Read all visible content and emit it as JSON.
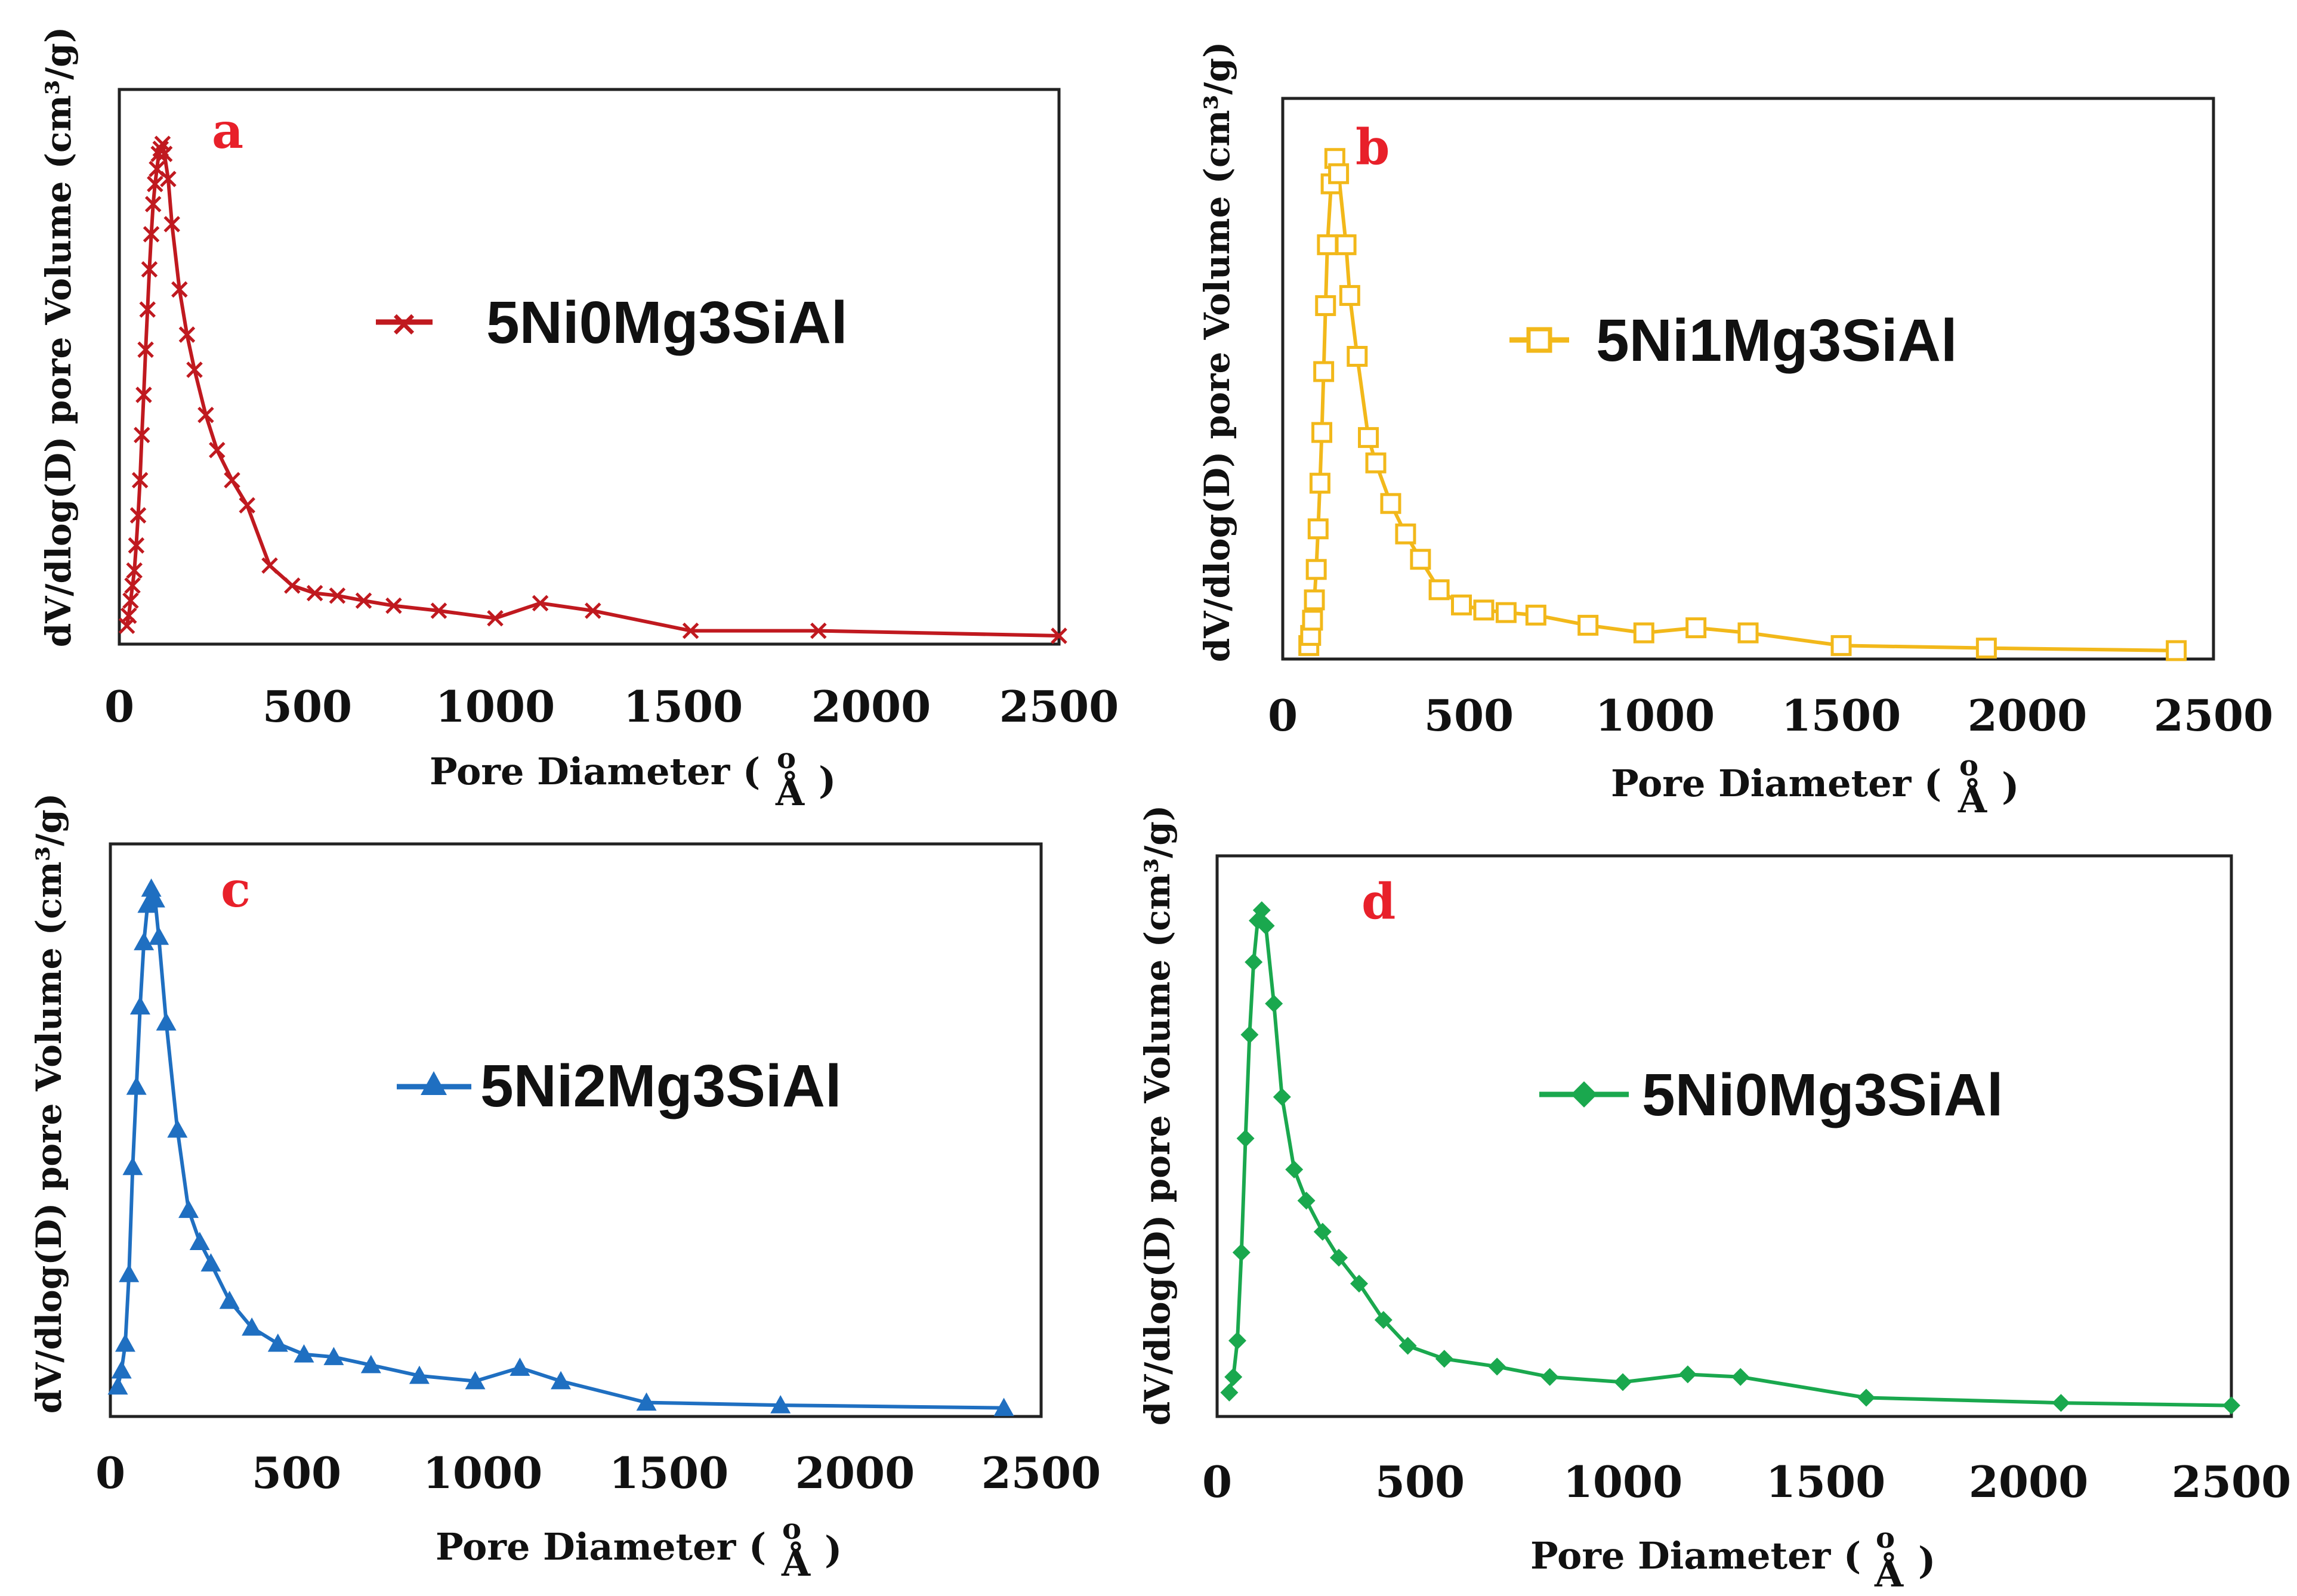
{
  "chart_data": [
    {
      "type": "line",
      "panel_label": "a",
      "legend": "5Ni0Mg3SiAl",
      "color": "#c0191f",
      "marker": "x",
      "xlabel_prefix": "Pore Diameter (",
      "xlabel_unit": "Å",
      "xlabel_suffix": ")",
      "ylabel": "dV/dlog(D) pore Volume (cm³/g)",
      "xlim": [
        0,
        2500
      ],
      "ylim": [
        0,
        1.0
      ],
      "x_ticks": [
        "0",
        "500",
        "1000",
        "1500",
        "2000",
        "2500"
      ],
      "x": [
        20,
        25,
        30,
        35,
        40,
        45,
        50,
        55,
        60,
        65,
        70,
        75,
        80,
        85,
        90,
        95,
        100,
        105,
        110,
        115,
        120,
        130,
        140,
        160,
        180,
        200,
        230,
        260,
        300,
        340,
        400,
        460,
        520,
        580,
        650,
        730,
        850,
        1000,
        1120,
        1260,
        1520,
        1860,
        2500
      ],
      "y": [
        0.02,
        0.04,
        0.07,
        0.1,
        0.13,
        0.18,
        0.24,
        0.31,
        0.4,
        0.48,
        0.57,
        0.65,
        0.73,
        0.8,
        0.86,
        0.9,
        0.93,
        0.96,
        0.97,
        0.98,
        0.96,
        0.91,
        0.82,
        0.69,
        0.6,
        0.53,
        0.44,
        0.37,
        0.31,
        0.26,
        0.14,
        0.1,
        0.085,
        0.08,
        0.07,
        0.06,
        0.05,
        0.035,
        0.065,
        0.05,
        0.01,
        0.01,
        0.0
      ]
    },
    {
      "type": "line",
      "panel_label": "b",
      "legend": "5Ni1Mg3SiAl",
      "color": "#f2b81a",
      "marker": "square",
      "xlabel_prefix": "Pore Diameter (",
      "xlabel_unit": "Å",
      "xlabel_suffix": ")",
      "ylabel": "dV/dlog(D) pore Volume (cm³/g)",
      "xlim": [
        0,
        2500
      ],
      "ylim": [
        0,
        1.0
      ],
      "x_ticks": [
        "0",
        "500",
        "1000",
        "1500",
        "2000",
        "2500"
      ],
      "x": [
        70,
        75,
        80,
        85,
        90,
        95,
        100,
        105,
        110,
        115,
        120,
        130,
        140,
        150,
        170,
        180,
        200,
        230,
        250,
        290,
        330,
        370,
        420,
        480,
        540,
        600,
        680,
        820,
        970,
        1110,
        1250,
        1500,
        1890,
        2400
      ],
      "y": [
        0.01,
        0.03,
        0.06,
        0.1,
        0.16,
        0.24,
        0.33,
        0.43,
        0.55,
        0.68,
        0.8,
        0.92,
        0.97,
        0.94,
        0.8,
        0.7,
        0.58,
        0.42,
        0.37,
        0.29,
        0.23,
        0.18,
        0.12,
        0.09,
        0.08,
        0.075,
        0.07,
        0.05,
        0.035,
        0.045,
        0.035,
        0.01,
        0.005,
        0.0
      ]
    },
    {
      "type": "line",
      "panel_label": "c",
      "legend": "5Ni2Mg3SiAl",
      "color": "#1f6fc1",
      "marker": "triangle",
      "xlabel_prefix": "Pore Diameter (",
      "xlabel_unit": "Å",
      "xlabel_suffix": ")",
      "ylabel": "dV/dlog(D) pore Volume (cm³/g)",
      "xlim": [
        0,
        2500
      ],
      "ylim": [
        0,
        1.0
      ],
      "x_ticks": [
        "0",
        "500",
        "1000",
        "1500",
        "2000",
        "2500"
      ],
      "x": [
        20,
        30,
        40,
        50,
        60,
        70,
        80,
        90,
        100,
        110,
        120,
        130,
        150,
        180,
        210,
        240,
        270,
        320,
        380,
        450,
        520,
        600,
        700,
        830,
        980,
        1100,
        1210,
        1440,
        1800,
        2400
      ],
      "y": [
        0.04,
        0.07,
        0.12,
        0.25,
        0.45,
        0.6,
        0.75,
        0.87,
        0.94,
        0.97,
        0.95,
        0.88,
        0.72,
        0.52,
        0.37,
        0.31,
        0.27,
        0.2,
        0.15,
        0.12,
        0.1,
        0.095,
        0.08,
        0.06,
        0.05,
        0.075,
        0.05,
        0.01,
        0.005,
        0.0
      ]
    },
    {
      "type": "line",
      "panel_label": "d",
      "legend": "5Ni0Mg3SiAl",
      "color": "#1aa84e",
      "marker": "diamond",
      "xlabel_prefix": "Pore Diameter (",
      "xlabel_unit": "Å",
      "xlabel_suffix": ")",
      "ylabel": "dV/dlog(D) pore Volume (cm³/g)",
      "xlim": [
        0,
        2500
      ],
      "ylim": [
        0,
        1.0
      ],
      "x_ticks": [
        "0",
        "500",
        "1000",
        "1500",
        "2000",
        "2500"
      ],
      "x": [
        30,
        40,
        50,
        60,
        70,
        80,
        90,
        100,
        110,
        120,
        140,
        160,
        190,
        220,
        260,
        300,
        350,
        410,
        470,
        560,
        690,
        820,
        1000,
        1160,
        1290,
        1600,
        2080,
        2500
      ],
      "y": [
        0.03,
        0.06,
        0.13,
        0.3,
        0.52,
        0.72,
        0.86,
        0.94,
        0.96,
        0.93,
        0.78,
        0.6,
        0.46,
        0.4,
        0.34,
        0.29,
        0.24,
        0.17,
        0.12,
        0.095,
        0.08,
        0.06,
        0.05,
        0.065,
        0.06,
        0.02,
        0.01,
        0.005
      ]
    }
  ]
}
